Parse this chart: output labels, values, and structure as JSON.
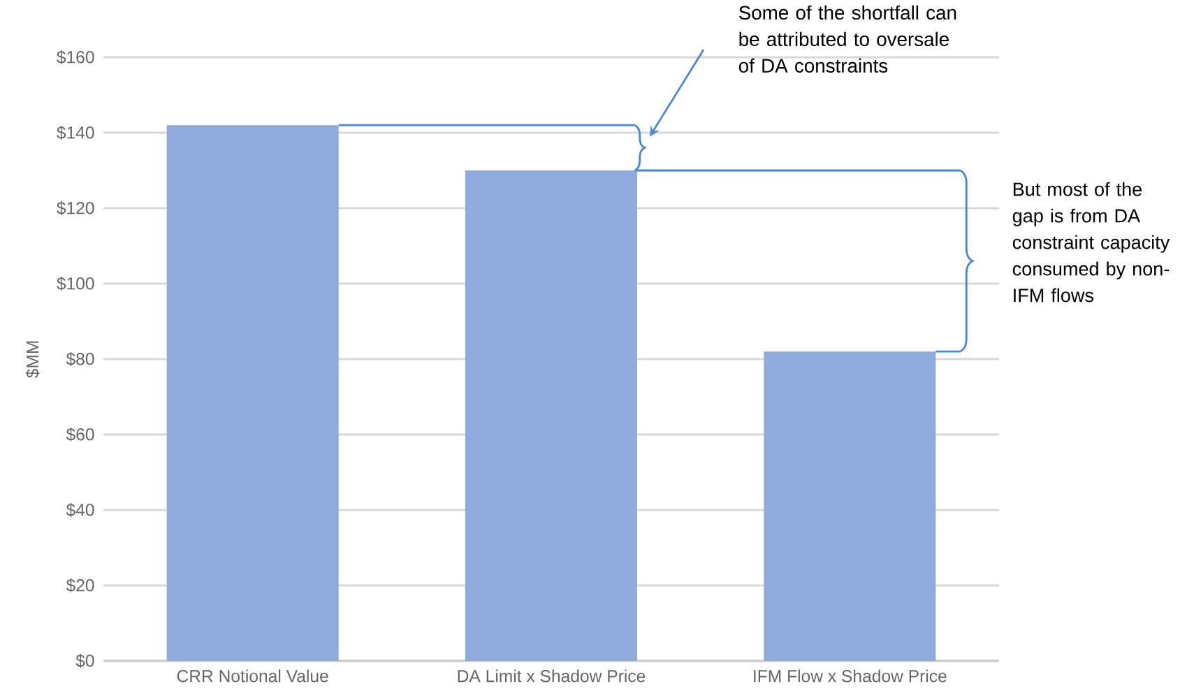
{
  "chart_data": {
    "type": "bar",
    "ylabel": "$MM",
    "categories": [
      "CRR Notional Value",
      "DA Limit x Shadow Price",
      "IFM Flow x Shadow Price"
    ],
    "values": [
      142,
      130,
      82
    ],
    "color": "#8faadc",
    "ylim": [
      0,
      160
    ],
    "yticks": [
      {
        "value": 0,
        "label": "$0"
      },
      {
        "value": 20,
        "label": "$20"
      },
      {
        "value": 40,
        "label": "$40"
      },
      {
        "value": 60,
        "label": "$60"
      },
      {
        "value": 80,
        "label": "$80"
      },
      {
        "value": 100,
        "label": "$100"
      },
      {
        "value": 120,
        "label": "$120"
      },
      {
        "value": 140,
        "label": "$140"
      },
      {
        "value": 160,
        "label": "$160"
      }
    ],
    "grid": "y",
    "annotations": [
      "Some of the shortfall can be attributed to oversale of DA constraints",
      "But most of the gap is from DA constraint capacity consumed by non-IFM flows"
    ]
  }
}
